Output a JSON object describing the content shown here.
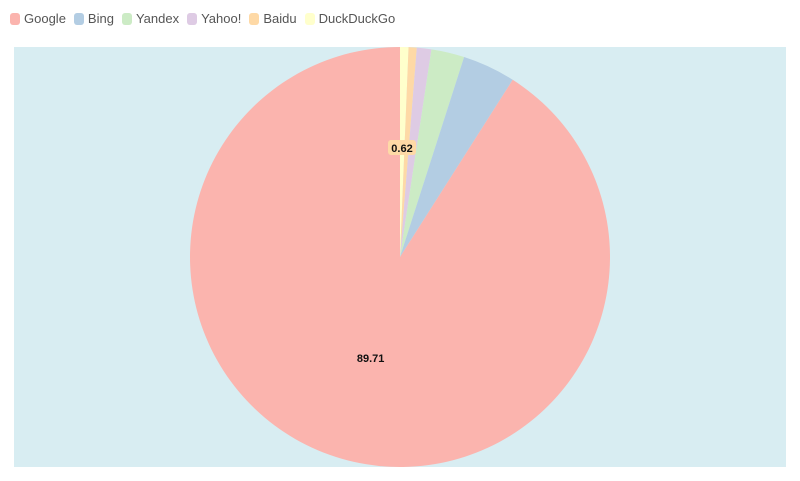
{
  "chart_data": {
    "type": "pie",
    "title": "",
    "categories": [
      "Google",
      "Bing",
      "Yandex",
      "Yahoo!",
      "Baidu",
      "DuckDuckGo"
    ],
    "values": [
      89.71,
      4.02,
      2.51,
      1.1,
      0.62,
      0.64
    ],
    "colors": [
      "#fbb4ae",
      "#b3cde3",
      "#ccebc5",
      "#decbe4",
      "#fed9a6",
      "#ffffcc"
    ],
    "data_labels": [
      {
        "category": "Google",
        "text": "89.71"
      },
      {
        "category": "Baidu",
        "text": "0.62"
      }
    ],
    "legend_position": "top-left",
    "background": "#d8edf2"
  }
}
